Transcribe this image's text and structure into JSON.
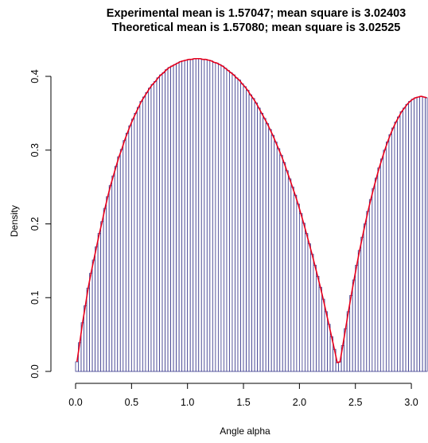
{
  "chart_data": {
    "type": "bar",
    "title_lines": [
      "Experimental mean is 1.57047; mean square is 3.02403",
      "Theoretical mean is 1.57080; mean square is 3.02525"
    ],
    "xlabel": "Angle alpha",
    "ylabel": "Density",
    "xlim": [
      0,
      3.14159
    ],
    "ylim": [
      0,
      0.4
    ],
    "x_ticks": [
      "0.0",
      "0.5",
      "1.0",
      "1.5",
      "2.0",
      "2.5",
      "3.0"
    ],
    "y_ticks": [
      "0.0",
      "0.1",
      "0.2",
      "0.3",
      "0.4"
    ],
    "bin_width": 0.025,
    "bin_count": 126,
    "bar_outline_color": "#3a3a8c",
    "curve_color": "#e8001c",
    "density_values": [
      0.013,
      0.039,
      0.066,
      0.089,
      0.113,
      0.133,
      0.151,
      0.169,
      0.187,
      0.203,
      0.221,
      0.237,
      0.252,
      0.265,
      0.278,
      0.291,
      0.301,
      0.313,
      0.323,
      0.333,
      0.342,
      0.35,
      0.358,
      0.366,
      0.372,
      0.378,
      0.384,
      0.389,
      0.393,
      0.398,
      0.402,
      0.405,
      0.409,
      0.412,
      0.414,
      0.416,
      0.418,
      0.42,
      0.421,
      0.422,
      0.423,
      0.423,
      0.424,
      0.424,
      0.424,
      0.423,
      0.423,
      0.422,
      0.421,
      0.419,
      0.418,
      0.416,
      0.414,
      0.411,
      0.408,
      0.405,
      0.402,
      0.398,
      0.395,
      0.39,
      0.386,
      0.381,
      0.375,
      0.37,
      0.364,
      0.357,
      0.35,
      0.343,
      0.336,
      0.328,
      0.32,
      0.311,
      0.302,
      0.293,
      0.283,
      0.272,
      0.261,
      0.25,
      0.239,
      0.227,
      0.214,
      0.201,
      0.187,
      0.173,
      0.159,
      0.144,
      0.129,
      0.114,
      0.098,
      0.081,
      0.064,
      0.047,
      0.03,
      0.012,
      0.013,
      0.035,
      0.058,
      0.081,
      0.103,
      0.124,
      0.144,
      0.164,
      0.182,
      0.2,
      0.217,
      0.233,
      0.248,
      0.262,
      0.276,
      0.288,
      0.3,
      0.311,
      0.321,
      0.33,
      0.338,
      0.345,
      0.352,
      0.357,
      0.362,
      0.366,
      0.369,
      0.371,
      0.372,
      0.373,
      0.372,
      0.371
    ]
  }
}
